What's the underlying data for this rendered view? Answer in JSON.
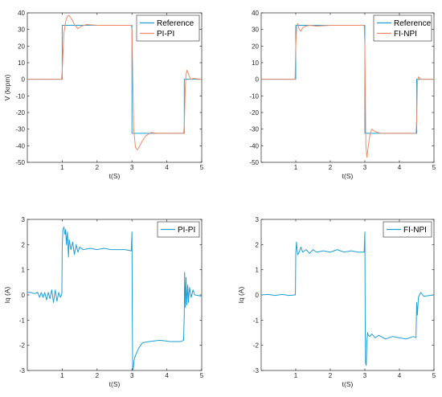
{
  "colors": {
    "reference": "#1f9fd6",
    "response": "#f08a66",
    "current": "#1f9fd6",
    "axis": "#262626"
  },
  "chart_data": [
    {
      "type": "line",
      "xlabel": "t(S)",
      "ylabel": "V (krpm)",
      "xlim": [
        0,
        5
      ],
      "ylim": [
        -50,
        40
      ],
      "xticks": [
        "1",
        "2",
        "3",
        "4",
        "5"
      ],
      "yticks": [
        "-50",
        "-40",
        "-30",
        "-20",
        "-10",
        "0",
        "10",
        "20",
        "30",
        "40"
      ],
      "legend": "top-right",
      "series": [
        {
          "name": "Reference",
          "color": "reference",
          "x": [
            0,
            1.0,
            1.0,
            3.0,
            3.0,
            4.5,
            4.5,
            5
          ],
          "y": [
            0,
            0,
            32.5,
            32.5,
            -32.5,
            -32.5,
            0,
            0
          ]
        },
        {
          "name": "PI-PI",
          "color": "response",
          "x": [
            0,
            0.98,
            1.0,
            1.05,
            1.1,
            1.15,
            1.2,
            1.28,
            1.35,
            1.45,
            1.55,
            1.7,
            2.0,
            2.5,
            2.98,
            3.0,
            3.05,
            3.1,
            3.15,
            3.2,
            3.3,
            3.4,
            3.55,
            3.7,
            4.0,
            4.48,
            4.5,
            4.53,
            4.55,
            4.58,
            4.62,
            4.68,
            4.75,
            5.0
          ],
          "y": [
            0,
            0,
            5,
            28,
            35,
            38,
            38.5,
            36,
            33,
            30.5,
            32,
            33,
            32.5,
            32.5,
            32.5,
            30,
            -30,
            -41,
            -42.5,
            -41,
            -37,
            -34,
            -32,
            -32.5,
            -32.5,
            -32.5,
            -28,
            -5,
            3,
            5.5,
            3,
            0,
            0.5,
            0
          ]
        }
      ]
    },
    {
      "type": "line",
      "xlabel": "t(S)",
      "ylabel": "",
      "xlim": [
        0,
        5
      ],
      "ylim": [
        -50,
        40
      ],
      "xticks": [
        "1",
        "2",
        "3",
        "4",
        "5"
      ],
      "yticks": [
        "-50",
        "-40",
        "-30",
        "-20",
        "-10",
        "0",
        "10",
        "20",
        "30",
        "40"
      ],
      "legend": "top-right",
      "series": [
        {
          "name": "Reference",
          "color": "reference",
          "x": [
            0,
            1.0,
            1.0,
            3.0,
            3.0,
            4.5,
            4.5,
            5
          ],
          "y": [
            0,
            0,
            32.5,
            32.5,
            -32.5,
            -32.5,
            0,
            0
          ]
        },
        {
          "name": "FI-NPI",
          "color": "response",
          "x": [
            0,
            0.98,
            1.0,
            1.03,
            1.06,
            1.1,
            1.15,
            1.2,
            1.28,
            1.4,
            1.6,
            2.0,
            2.98,
            3.0,
            3.03,
            3.06,
            3.1,
            3.15,
            3.2,
            3.3,
            3.45,
            3.7,
            4.48,
            4.5,
            4.52,
            4.55,
            4.58,
            4.62,
            5.0
          ],
          "y": [
            0,
            0,
            20,
            32,
            33.5,
            30,
            29,
            31,
            32,
            32.5,
            32,
            32.5,
            32.5,
            20,
            -40,
            -47,
            -40,
            -33,
            -30,
            -31.5,
            -32.5,
            -32.5,
            -32.5,
            -25,
            -2,
            1.5,
            1,
            0,
            0
          ]
        }
      ]
    },
    {
      "type": "line",
      "xlabel": "t(S)",
      "ylabel": "Iq (A)",
      "xlim": [
        0,
        5
      ],
      "ylim": [
        -3,
        3
      ],
      "xticks": [
        "1",
        "2",
        "3",
        "4",
        "5"
      ],
      "yticks": [
        "-3",
        "-2",
        "-1",
        "0",
        "1",
        "2",
        "3"
      ],
      "legend": "top-right",
      "series": [
        {
          "name": "PI-PI",
          "color": "current",
          "x": [
            0,
            0.1,
            0.2,
            0.3,
            0.35,
            0.4,
            0.45,
            0.5,
            0.55,
            0.6,
            0.65,
            0.7,
            0.75,
            0.8,
            0.85,
            0.9,
            0.95,
            0.99,
            1.0,
            1.02,
            1.05,
            1.08,
            1.1,
            1.12,
            1.15,
            1.18,
            1.2,
            1.25,
            1.3,
            1.35,
            1.4,
            1.45,
            1.5,
            1.6,
            1.8,
            2.0,
            2.2,
            2.4,
            2.6,
            2.8,
            2.98,
            3.0,
            3.01,
            3.02,
            3.04,
            3.06,
            3.1,
            3.2,
            3.3,
            3.5,
            3.8,
            4.1,
            4.4,
            4.48,
            4.5,
            4.51,
            4.53,
            4.55,
            4.57,
            4.6,
            4.62,
            4.65,
            4.7,
            4.75,
            4.8,
            5.0
          ],
          "y": [
            0.1,
            0.1,
            0.05,
            0.1,
            -0.1,
            0.1,
            -0.1,
            0.1,
            -0.2,
            0.1,
            -0.15,
            0.2,
            -0.3,
            0.2,
            -0.25,
            0.1,
            -0.1,
            0.05,
            1.9,
            2.6,
            2.7,
            2.4,
            2.6,
            2.0,
            2.5,
            1.5,
            2.2,
            1.8,
            2.1,
            1.6,
            2.0,
            1.7,
            1.9,
            1.8,
            1.85,
            1.8,
            1.85,
            1.8,
            1.8,
            1.8,
            1.75,
            2.5,
            -1.0,
            -3.0,
            -2.9,
            -2.6,
            -2.4,
            -2.1,
            -1.9,
            -1.85,
            -1.8,
            -1.85,
            -1.85,
            -1.8,
            -0.8,
            0.9,
            -0.5,
            0.7,
            -0.4,
            0.4,
            -0.3,
            0.3,
            -0.1,
            0.2,
            0.0,
            -0.05
          ]
        }
      ]
    },
    {
      "type": "line",
      "xlabel": "t(S)",
      "ylabel": "Iq (A)",
      "xlim": [
        0,
        5
      ],
      "ylim": [
        -3,
        3
      ],
      "xticks": [
        "1",
        "2",
        "3",
        "4",
        "5"
      ],
      "yticks": [
        "-3",
        "-2",
        "-1",
        "0",
        "1",
        "2",
        "3"
      ],
      "legend": "top-right",
      "series": [
        {
          "name": "FI-NPI",
          "color": "current",
          "x": [
            0,
            0.2,
            0.4,
            0.6,
            0.8,
            0.99,
            1.0,
            1.02,
            1.04,
            1.06,
            1.1,
            1.15,
            1.2,
            1.3,
            1.4,
            1.5,
            1.6,
            1.8,
            2.0,
            2.2,
            2.4,
            2.6,
            2.8,
            2.98,
            3.0,
            3.01,
            3.02,
            3.04,
            3.06,
            3.08,
            3.1,
            3.15,
            3.2,
            3.3,
            3.4,
            3.6,
            3.8,
            4.0,
            4.2,
            4.4,
            4.48,
            4.5,
            4.52,
            4.55,
            4.58,
            4.62,
            4.7,
            5.0
          ],
          "y": [
            0,
            0.02,
            -0.02,
            0.02,
            -0.02,
            0,
            1.6,
            2.1,
            1.8,
            1.6,
            1.7,
            1.9,
            1.7,
            1.8,
            1.65,
            1.8,
            1.7,
            1.75,
            1.7,
            1.8,
            1.7,
            1.75,
            1.7,
            1.7,
            2.5,
            -1.0,
            -2.7,
            -2.8,
            -1.8,
            -1.5,
            -1.6,
            -1.65,
            -1.55,
            -1.7,
            -1.6,
            -1.75,
            -1.65,
            -1.7,
            -1.75,
            -1.65,
            -1.7,
            -0.3,
            -0.8,
            -0.1,
            0.0,
            0.1,
            -0.05,
            0.0
          ]
        }
      ]
    }
  ]
}
